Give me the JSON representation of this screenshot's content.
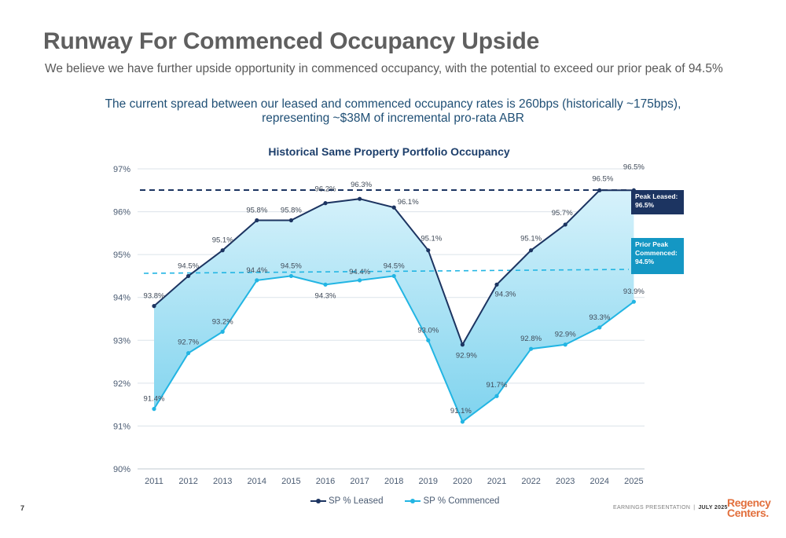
{
  "page": {
    "title": "Runway For Commenced Occupancy Upside",
    "subtitle": "We believe we have further upside opportunity in commenced occupancy, with the potential to exceed our prior peak of 94.5%",
    "callout_line1": "The current spread between our leased and commenced occupancy rates is 260bps (historically ~175bps),",
    "callout_line2": "representing ~$38M of incremental pro-rata ABR",
    "page_number": "7",
    "footer_left": "EARNINGS PRESENTATION",
    "footer_sep": "|",
    "footer_right": "JULY 2025",
    "logo_line1": "Regency",
    "logo_line2": "Centers."
  },
  "colors": {
    "leased": "#1c3461",
    "commenced": "#22b5e3",
    "fill_top": "#d7f2fb",
    "fill_bottom": "#7fd3ee",
    "leased_badge": "#1c3461",
    "commenced_badge": "#1497c4",
    "logo": "#e26f3c"
  },
  "chart_data": {
    "type": "line",
    "title": "Historical Same Property Portfolio Occupancy",
    "categories": [
      "2011",
      "2012",
      "2013",
      "2014",
      "2015",
      "2016",
      "2017",
      "2018",
      "2019",
      "2020",
      "2021",
      "2022",
      "2023",
      "2024",
      "2025"
    ],
    "series": [
      {
        "name": "SP % Leased",
        "values": [
          93.8,
          94.5,
          95.1,
          95.8,
          95.8,
          96.2,
          96.3,
          96.1,
          95.1,
          92.9,
          94.3,
          95.1,
          95.7,
          96.5,
          96.5
        ],
        "labels": [
          "93.8%",
          "94.5%",
          "95.1%",
          "95.8%",
          "95.8%",
          "96.2%",
          "96.3%",
          "96.1%",
          "95.1%",
          "92.9%",
          "94.3%",
          "95.1%",
          "95.7%",
          "96.5%",
          "96.5%"
        ]
      },
      {
        "name": "SP % Commenced",
        "values": [
          91.4,
          92.7,
          93.2,
          94.4,
          94.5,
          94.3,
          94.4,
          94.5,
          93.0,
          91.1,
          91.7,
          92.8,
          92.9,
          93.3,
          93.9
        ],
        "labels": [
          "91.4%",
          "92.7%",
          "93.2%",
          "94.4%",
          "94.5%",
          "94.3%",
          "94.4%",
          "94.5%",
          "93.0%",
          "91.1%",
          "91.7%",
          "92.8%",
          "92.9%",
          "93.3%",
          "93.9%"
        ]
      }
    ],
    "reference_lines": [
      {
        "label": "Peak Leased: 96.5%",
        "value": 96.5
      },
      {
        "label": "Prior Peak Commenced: 94.5%",
        "value": 94.5
      }
    ],
    "y_ticks": [
      "90%",
      "91%",
      "92%",
      "93%",
      "94%",
      "95%",
      "96%",
      "97%"
    ],
    "ylim": [
      90,
      97
    ],
    "grid": true,
    "legend": "bottom"
  },
  "badges": {
    "peak_leased_line1": "Peak Leased:",
    "peak_leased_line2": "96.5%",
    "prior_peak_line1": "Prior Peak",
    "prior_peak_line2": "Commenced:",
    "prior_peak_line3": "94.5%"
  }
}
